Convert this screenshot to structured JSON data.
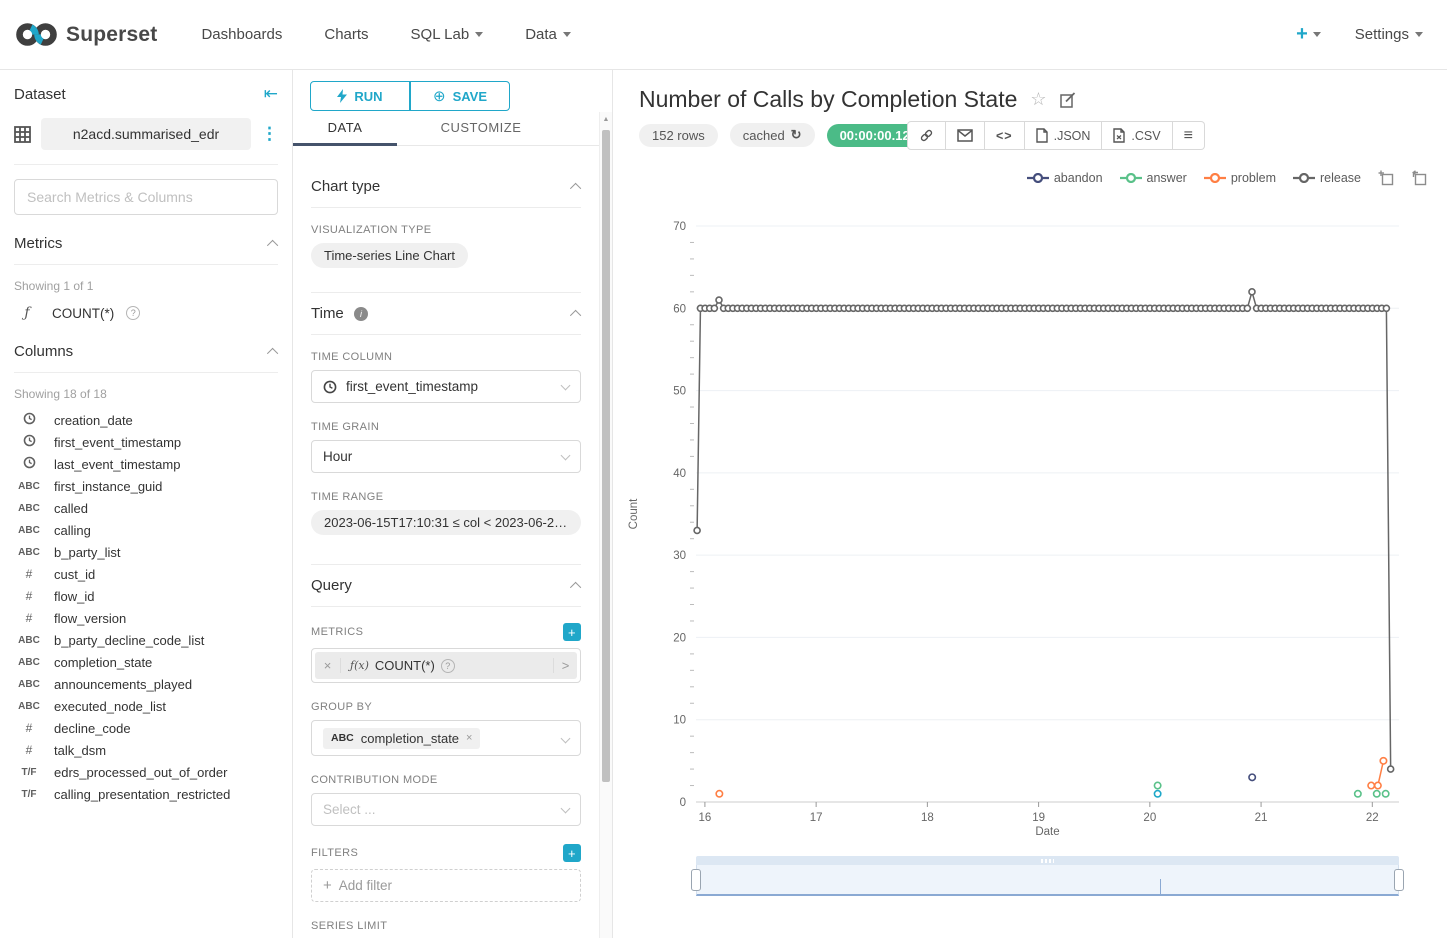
{
  "colors": {
    "primary_teal": "#20A7C9",
    "tab_underline": "#45536b",
    "timer_badge_bg": "#4BBB87",
    "pill_bg": "#f0f0f0",
    "series_abandon": "#454E7C",
    "series_answer": "#5AC189",
    "series_problem": "#FF7F44",
    "series_release": "#666666",
    "series_unlabeled": "#1FA8C9"
  },
  "glyphs": {
    "plus": "+",
    "kebab": "⋮",
    "collapse_left": "⇤",
    "f": "ƒ",
    "fx": "ƒ(x)",
    "help": "?",
    "info": "i",
    "abc": "ABC",
    "hash": "#",
    "tf": "T/F",
    "close": "×",
    "chevron_right": ">",
    "star": "☆",
    "menu": "≡",
    "code": "<>",
    "refresh": "↻",
    "scroll_up": "▲"
  },
  "navbar": {
    "brand": "Superset",
    "items": [
      "Dashboards",
      "Charts",
      "SQL Lab",
      "Data"
    ],
    "plus_label": "+",
    "settings_label": "Settings"
  },
  "dataset_panel": {
    "title": "Dataset",
    "dataset_name": "n2acd.summarised_edr",
    "search_placeholder": "Search Metrics & Columns",
    "metrics_header": "Metrics",
    "metrics_count": "Showing 1 of 1",
    "metric_label": "COUNT(*)",
    "columns_header": "Columns",
    "columns_count": "Showing 18 of 18",
    "columns": [
      {
        "type": "time",
        "name": "creation_date"
      },
      {
        "type": "time",
        "name": "first_event_timestamp"
      },
      {
        "type": "time",
        "name": "last_event_timestamp"
      },
      {
        "type": "text",
        "name": "first_instance_guid"
      },
      {
        "type": "text",
        "name": "called"
      },
      {
        "type": "text",
        "name": "calling"
      },
      {
        "type": "text",
        "name": "b_party_list"
      },
      {
        "type": "number",
        "name": "cust_id"
      },
      {
        "type": "number",
        "name": "flow_id"
      },
      {
        "type": "number",
        "name": "flow_version"
      },
      {
        "type": "text",
        "name": "b_party_decline_code_list"
      },
      {
        "type": "text",
        "name": "completion_state"
      },
      {
        "type": "text",
        "name": "announcements_played"
      },
      {
        "type": "text",
        "name": "executed_node_list"
      },
      {
        "type": "number",
        "name": "decline_code"
      },
      {
        "type": "number",
        "name": "talk_dsm"
      },
      {
        "type": "bool",
        "name": "edrs_processed_out_of_order"
      },
      {
        "type": "bool",
        "name": "calling_presentation_restricted"
      }
    ]
  },
  "control_panel": {
    "run_label": "RUN",
    "save_label": "SAVE",
    "tabs": [
      "DATA",
      "CUSTOMIZE"
    ],
    "active_tab": "DATA",
    "chart_type": {
      "header": "Chart type",
      "viz_type_label": "VISUALIZATION TYPE",
      "viz_type_value": "Time-series Line Chart"
    },
    "time": {
      "header": "Time",
      "time_column_label": "TIME COLUMN",
      "time_column_value": "first_event_timestamp",
      "time_grain_label": "TIME GRAIN",
      "time_grain_value": "Hour",
      "time_range_label": "TIME RANGE",
      "time_range_value": "2023-06-15T17:10:31 ≤ col < 2023-06-22..."
    },
    "query": {
      "header": "Query",
      "metrics_label": "METRICS",
      "metric_prefix": "ƒ(x)",
      "metric_value": "COUNT(*)",
      "group_by_label": "GROUP BY",
      "group_by_type": "ABC",
      "group_by_value": "completion_state",
      "contribution_label": "CONTRIBUTION MODE",
      "contribution_placeholder": "Select ...",
      "filters_label": "FILTERS",
      "add_filter_label": "Add filter",
      "series_limit_label": "SERIES LIMIT"
    }
  },
  "chart_panel": {
    "title": "Number of Calls by Completion State",
    "rows_badge": "152 rows",
    "cached_badge": "cached",
    "timer_badge": "00:00:00.12",
    "json_label": ".JSON",
    "csv_label": ".CSV"
  },
  "chart_data": {
    "type": "line",
    "title": "Number of Calls by Completion State",
    "xlabel": "Date",
    "ylabel": "Count",
    "x_context": "Day of month, June 2023; points at hourly grain",
    "x_ticks": [
      16,
      17,
      18,
      19,
      20,
      21,
      22
    ],
    "x_domain": [
      15.92,
      22.24
    ],
    "y_ticks": [
      0,
      10,
      20,
      30,
      40,
      50,
      60,
      70
    ],
    "ylim": [
      0,
      70
    ],
    "y_minor_step": 2,
    "grid": true,
    "legend_position": "top-right",
    "series": [
      {
        "name": "abandon",
        "color": "#454E7C",
        "in_legend": true,
        "points": [
          [
            20.92,
            3
          ]
        ]
      },
      {
        "name": "answer",
        "color": "#5AC189",
        "in_legend": true,
        "points": [
          [
            20.07,
            2
          ],
          [
            21.87,
            1
          ],
          [
            22.04,
            1
          ],
          [
            22.12,
            1
          ]
        ]
      },
      {
        "name": "problem",
        "color": "#FF7F44",
        "in_legend": true,
        "points": [
          [
            16.13,
            1
          ],
          [
            21.99,
            2
          ],
          [
            22.05,
            2
          ],
          [
            22.1,
            5
          ]
        ],
        "segments": [
          [
            [
              22.05,
              2
            ],
            [
              22.1,
              5
            ]
          ]
        ]
      },
      {
        "name": "release",
        "color": "#666666",
        "in_legend": true,
        "head": [
          15.93,
          33
        ],
        "plateau": {
          "x_start": 15.96,
          "x_end": 22.13,
          "step": 0.0416667,
          "value": 60
        },
        "exceptions": [
          [
            16.125,
            61
          ],
          [
            20.92,
            62
          ]
        ],
        "tail": [
          22.165,
          4
        ]
      },
      {
        "name": "(unlabeled)",
        "color": "#1FA8C9",
        "in_legend": false,
        "points": [
          [
            20.07,
            1
          ]
        ]
      }
    ],
    "brush": {
      "selected_range": "full",
      "marker_position_fraction": 0.66
    }
  }
}
